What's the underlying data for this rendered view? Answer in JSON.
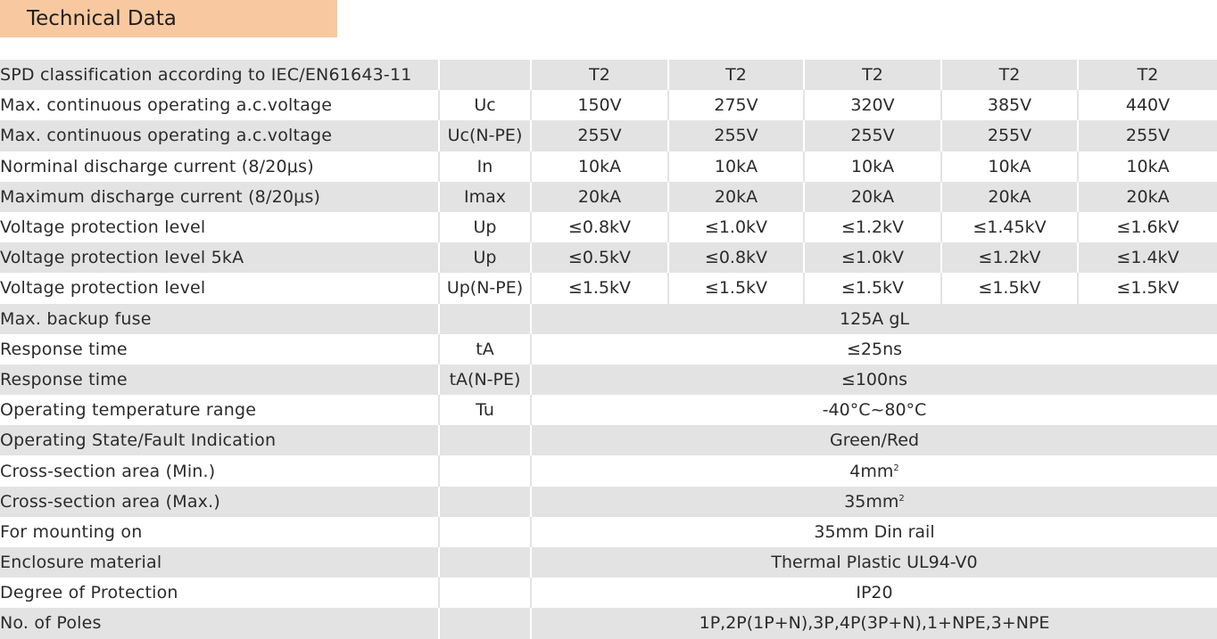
{
  "header": {
    "title": "Technical Data"
  },
  "table": {
    "classification_row": {
      "param": "SPD classification according to IEC/EN61643-11",
      "symbol": "",
      "values": [
        "T2",
        "T2",
        "T2",
        "T2",
        "T2"
      ]
    },
    "model_rows": [
      {
        "param": "Max. continuous operating a.c.voltage",
        "symbol": "Uc",
        "values": [
          "150V",
          "275V",
          "320V",
          "385V",
          "440V"
        ]
      },
      {
        "param": "Max. continuous operating a.c.voltage",
        "symbol": "Uc(N-PE)",
        "values": [
          "255V",
          "255V",
          "255V",
          "255V",
          "255V"
        ]
      },
      {
        "param": "Norminal discharge current  (8/20μs)",
        "symbol": "In",
        "values": [
          "10kA",
          "10kA",
          "10kA",
          "10kA",
          "10kA"
        ]
      },
      {
        "param": "Maximum discharge current (8/20μs)",
        "symbol": "Imax",
        "values": [
          "20kA",
          "20kA",
          "20kA",
          "20kA",
          "20kA"
        ]
      },
      {
        "param": "Voltage protection level",
        "symbol": "Up",
        "values": [
          "≤0.8kV",
          "≤1.0kV",
          "≤1.2kV",
          "≤1.45kV",
          "≤1.6kV"
        ]
      },
      {
        "param": "Voltage protection level 5kA",
        "symbol": "Up",
        "values": [
          "≤0.5kV",
          "≤0.8kV",
          "≤1.0kV",
          "≤1.2kV",
          "≤1.4kV"
        ]
      },
      {
        "param": "Voltage protection level",
        "symbol": "Up(N-PE)",
        "values": [
          "≤1.5kV",
          "≤1.5kV",
          "≤1.5kV",
          "≤1.5kV",
          "≤1.5kV"
        ]
      }
    ],
    "common_rows": [
      {
        "param": "Max. backup fuse",
        "symbol": "",
        "value": "125A gL"
      },
      {
        "param": "Response time",
        "symbol": "tA",
        "value": "≤25ns"
      },
      {
        "param": "Response time",
        "symbol": "tA(N-PE)",
        "value": "≤100ns"
      },
      {
        "param": "Operating temperature range",
        "symbol": "Tu",
        "value": "-40°C~80°C"
      },
      {
        "param": "Operating State/Fault Indication",
        "symbol": "",
        "value": "Green/Red"
      },
      {
        "param": "Cross-section area  (Min.)",
        "symbol": "",
        "value": "4mm",
        "sup": "2"
      },
      {
        "param": "Cross-section area (Max.)",
        "symbol": "",
        "value": "35mm",
        "sup": "2"
      },
      {
        "param": "For mounting on",
        "symbol": "",
        "value": "35mm Din rail"
      },
      {
        "param": "Enclosure material",
        "symbol": "",
        "value": "Thermal Plastic UL94-V0"
      },
      {
        "param": "Degree of Protection",
        "symbol": "",
        "value": "IP20"
      },
      {
        "param": "No. of Poles",
        "symbol": "",
        "value": "1P,2P(1P+N),3P,4P(3P+N),1+NPE,3+NPE"
      }
    ]
  },
  "colors": {
    "header_bg": "#f8c9a0",
    "row_stripe": "#e3e3e3"
  }
}
